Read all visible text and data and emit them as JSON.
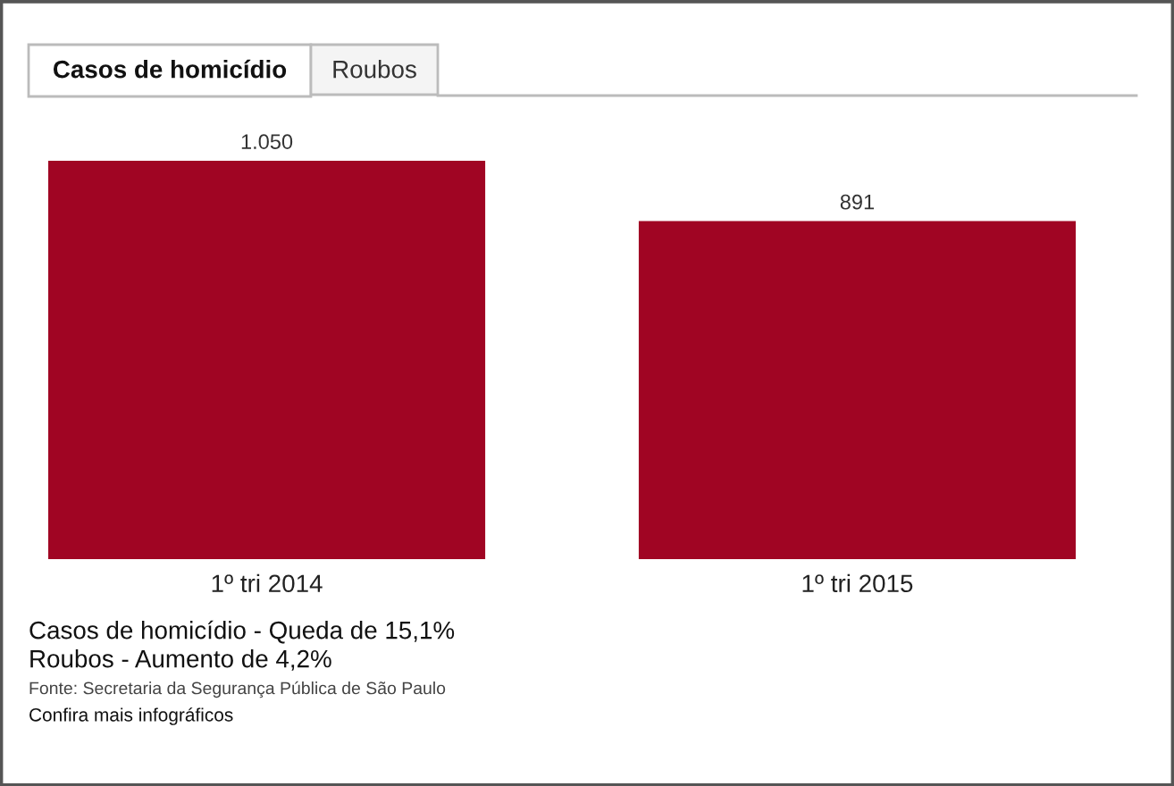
{
  "chart_data": {
    "type": "bar",
    "title": "Casos de homicídio",
    "subtitle": "Roubos",
    "categories": [
      "1º tri 2014",
      "1º tri 2015"
    ],
    "values": [
      1050,
      891
    ],
    "value_labels": [
      "1.050",
      "891"
    ],
    "color": "#a00523",
    "grid": false,
    "legend": false,
    "annotations": [
      "Casos de homicídio - Queda de 15,1%",
      "Roubos - Aumento de 4,2%",
      "Fonte: Secretaria da Segurança Pública de São Paulo",
      "Confira mais infográficos"
    ]
  }
}
